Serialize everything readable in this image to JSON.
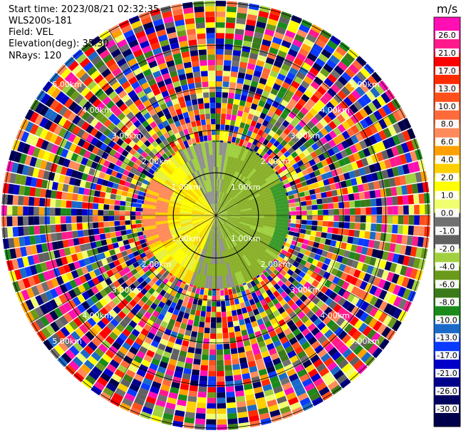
{
  "header": {
    "start_time": "Start time: 2023/08/21 02:32:35",
    "instrument": "WLS200s-181",
    "field": "Field: VEL",
    "elevation": "Elevation(deg): 35.30",
    "nrays": "NRays: 120"
  },
  "colorbar": {
    "unit": "m/s",
    "ticks": [
      "26.0",
      "21.0",
      "17.0",
      "13.0",
      "10.0",
      "8.0",
      "6.0",
      "4.0",
      "2.0",
      "1.0",
      "0.0",
      "-1.0",
      "-2.0",
      "-4.0",
      "-6.0",
      "-8.0",
      "-10.0",
      "-13.0",
      "-17.0",
      "-21.0",
      "-26.0",
      "-30.0"
    ],
    "colors": [
      "#ff0fb4",
      "#ff1a8c",
      "#ff0000",
      "#ff2b00",
      "#ff4f1a",
      "#ff6a3a",
      "#ff8a5a",
      "#ffa000",
      "#ffd000",
      "#ffff00",
      "#f0ff70",
      "#707070",
      "#606060",
      "#a0d040",
      "#6a9a1a",
      "#3a7a1a",
      "#1a8a1a",
      "#1a6ac8",
      "#0a3aff",
      "#0000c8",
      "#00008a",
      "#000060",
      "#00004a"
    ]
  },
  "chart_data": {
    "type": "heatmap",
    "projection": "polar PPI",
    "field": "VEL",
    "units": "m/s",
    "nrays": 120,
    "elevation_deg": 35.3,
    "range_ring_labels": [
      "1.00km",
      "2.00km",
      "3.00km",
      "4.00km",
      "5.00km"
    ],
    "range_ring_labels_drawn": [
      {
        "text": "1.00km"
      },
      {
        "text": "1.00km"
      },
      {
        "text": "1.00km"
      },
      {
        "text": "1.00km"
      },
      {
        "text": "2.00km"
      },
      {
        "text": "2.00km"
      },
      {
        "text": "2.00km"
      },
      {
        "text": "2.00km"
      },
      {
        "text": "3.00km"
      },
      {
        "text": "3.00km"
      },
      {
        "text": "3.00km"
      },
      {
        "text": "3.00km"
      },
      {
        "text": "4.00km"
      },
      {
        "text": "4.00km"
      },
      {
        "text": "4.00km"
      },
      {
        "text": "4.00km"
      },
      {
        "text": "5.00km"
      },
      {
        "text": "5.00km"
      },
      {
        "text": "5.00km"
      },
      {
        "text": "5.00km"
      }
    ],
    "colorbar_range": [
      -30,
      26
    ],
    "near_field_summary": "Within ~1 km: west side positive (2 to 6 m/s, yellow/orange), east side negative (-2 to -6 m/s, green), gray near zero to the north/south; beyond ~1 km values are noise spanning the full color range."
  }
}
